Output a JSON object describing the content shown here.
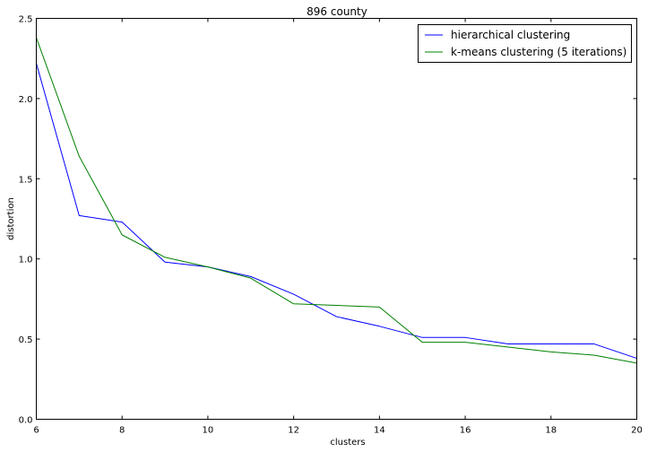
{
  "chart_data": {
    "type": "line",
    "title": "896 county",
    "xlabel": "clusters",
    "ylabel": "distortion",
    "xlim": [
      6,
      20
    ],
    "ylim": [
      0.0,
      2.5
    ],
    "xticks": [
      6,
      8,
      10,
      12,
      14,
      16,
      18,
      20
    ],
    "yticks": [
      0.0,
      0.5,
      1.0,
      1.5,
      2.0,
      2.5
    ],
    "xtick_labels": [
      "6",
      "8",
      "10",
      "12",
      "14",
      "16",
      "18",
      "20"
    ],
    "ytick_labels": [
      "0.0",
      "0.5",
      "1.0",
      "1.5",
      "2.0",
      "2.5"
    ],
    "grid": false,
    "legend_position": "top-right",
    "x": [
      6,
      7,
      8,
      9,
      10,
      11,
      12,
      13,
      14,
      15,
      16,
      17,
      18,
      19,
      20
    ],
    "series": [
      {
        "name": "hierarchical clustering",
        "color": "#0000ff",
        "values": [
          2.22,
          1.27,
          1.23,
          0.98,
          0.95,
          0.89,
          0.78,
          0.64,
          0.58,
          0.51,
          0.51,
          0.47,
          0.47,
          0.47,
          0.38
        ]
      },
      {
        "name": "k-means clustering (5 iterations)",
        "color": "#008000",
        "values": [
          2.38,
          1.64,
          1.15,
          1.01,
          0.95,
          0.88,
          0.72,
          0.71,
          0.7,
          0.48,
          0.48,
          0.45,
          0.42,
          0.4,
          0.35
        ]
      }
    ]
  }
}
